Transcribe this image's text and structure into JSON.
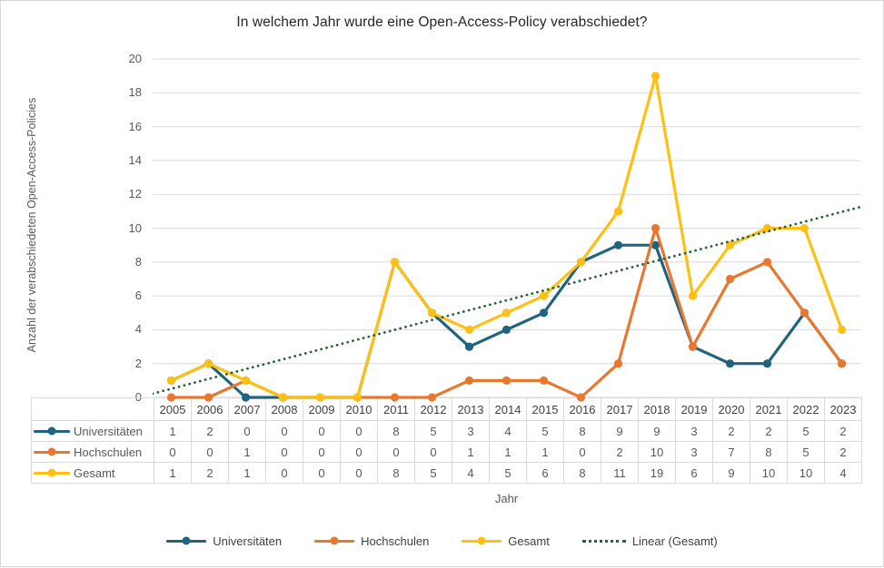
{
  "title": "In welchem Jahr wurde eine Open-Access-Policy verabschiedet?",
  "y_axis_title": "Anzahl der verabschiedeten Open-Access-Policies",
  "x_axis_title": "Jahr",
  "colors": {
    "universitaeten": "#20647F",
    "hochschulen": "#E8772F",
    "gesamt": "#FFC013",
    "trend": "#266339",
    "gridline": "#D9D9D9",
    "table_border": "#D9D9D9",
    "tick_text": "#595959",
    "label_text": "#404040",
    "title_text": "#262626"
  },
  "chart_data": {
    "type": "line",
    "categories": [
      "2005",
      "2006",
      "2007",
      "2008",
      "2009",
      "2010",
      "2011",
      "2012",
      "2013",
      "2014",
      "2015",
      "2016",
      "2017",
      "2018",
      "2019",
      "2020",
      "2021",
      "2022",
      "2023"
    ],
    "series": [
      {
        "name": "Universitäten",
        "color": "#20647F",
        "values": [
          1,
          2,
          0,
          0,
          0,
          0,
          8,
          5,
          3,
          4,
          5,
          8,
          9,
          9,
          3,
          2,
          2,
          5,
          2
        ]
      },
      {
        "name": "Hochschulen",
        "color": "#E8772F",
        "values": [
          0,
          0,
          1,
          0,
          0,
          0,
          0,
          0,
          1,
          1,
          1,
          0,
          2,
          10,
          3,
          7,
          8,
          5,
          2
        ]
      },
      {
        "name": "Gesamt",
        "color": "#FFC013",
        "values": [
          1,
          2,
          1,
          0,
          0,
          0,
          8,
          5,
          4,
          5,
          6,
          8,
          11,
          19,
          6,
          9,
          10,
          10,
          4
        ]
      }
    ],
    "trendline": {
      "name": "Linear (Gesamt)",
      "based_on": "Gesamt",
      "style": "dotted",
      "color": "#266339"
    },
    "title": "In welchem Jahr wurde eine Open-Access-Policy verabschiedet?",
    "xlabel": "Jahr",
    "ylabel": "Anzahl der verabschiedeten Open-Access-Policies",
    "ylim": [
      0,
      20
    ],
    "y_ticks": [
      0,
      2,
      4,
      6,
      8,
      10,
      12,
      14,
      16,
      18,
      20
    ],
    "grid": true,
    "legend_position": "bottom",
    "data_table_shown": true
  },
  "legend": {
    "items": [
      {
        "label": "Universitäten",
        "color": "#20647F",
        "style": "line-marker"
      },
      {
        "label": "Hochschulen",
        "color": "#E8772F",
        "style": "line-marker"
      },
      {
        "label": "Gesamt",
        "color": "#FFC013",
        "style": "line-marker"
      },
      {
        "label": "Linear (Gesamt)",
        "color": "#266339",
        "style": "dotted"
      }
    ]
  }
}
